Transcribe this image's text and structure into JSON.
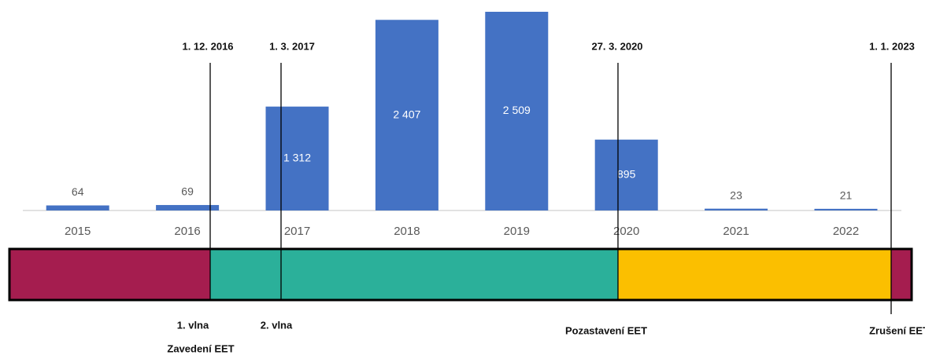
{
  "chart_data": {
    "type": "bar",
    "categories": [
      "2015",
      "2016",
      "2017",
      "2018",
      "2019",
      "2020",
      "2021",
      "2022"
    ],
    "values": [
      64,
      69,
      1312,
      2407,
      2509,
      895,
      23,
      21
    ],
    "value_labels": [
      "64",
      "69",
      "1 312",
      "2 407",
      "2 509",
      "895",
      "23",
      "21"
    ],
    "color": "#4472c4",
    "events": [
      {
        "date": "1. 12. 2016",
        "labels": [
          "1. vlna",
          "Zavedení EET"
        ]
      },
      {
        "date": "1. 3. 2017",
        "labels": [
          "2. vlna"
        ]
      },
      {
        "date": "27. 3. 2020",
        "labels": [
          "Pozastavení EET"
        ]
      },
      {
        "date": "1. 1. 2023",
        "labels": [
          "Zrušení EET"
        ]
      }
    ]
  }
}
